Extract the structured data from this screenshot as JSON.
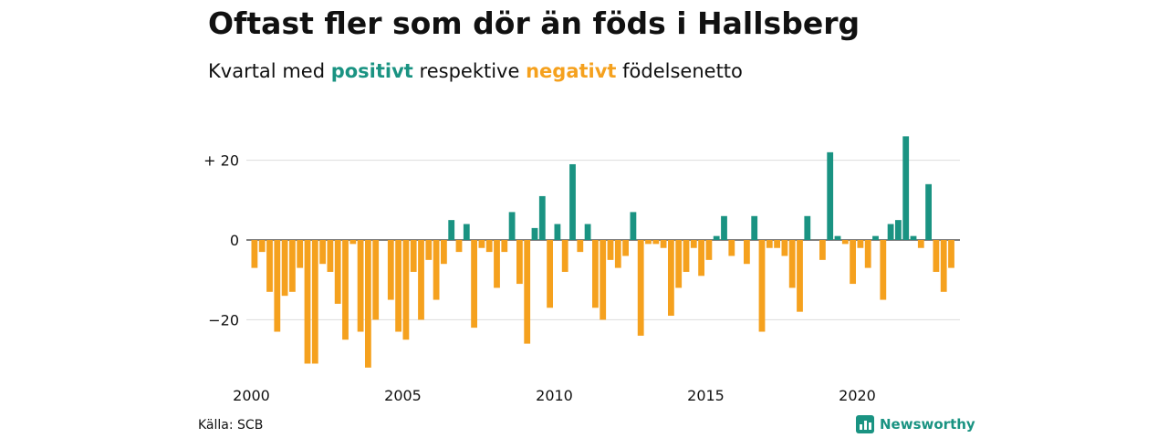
{
  "header": {
    "title": "Oftast fler som dör än föds i Hallsberg",
    "subtitle_prefix": "Kvartal med",
    "subtitle_positive": "positivt",
    "subtitle_middle": "respektive",
    "subtitle_negative": "negativt",
    "subtitle_suffix": "födelsenetto"
  },
  "footer": {
    "source": "Källa: SCB",
    "brand": "Newsworthy",
    "brand_icon": "newsworthy-logo-icon"
  },
  "colors": {
    "positive": "#1a9382",
    "negative": "#f5a11e",
    "grid": "#dddddd",
    "axis": "#333333"
  },
  "chart_data": {
    "type": "bar",
    "title": "Oftast fler som dör än föds i Hallsberg",
    "subtitle": "Kvartal med positivt respektive negativt födelsenetto",
    "x_start": "2000 Q1",
    "x_ticks": [
      "2000",
      "2005",
      "2010",
      "2015",
      "2020"
    ],
    "y_ticks": [
      "+ 20",
      "0",
      "−20"
    ],
    "y_tick_values": [
      20,
      0,
      -20
    ],
    "ylim": [
      -33,
      28
    ],
    "grid": true,
    "values": [
      -7,
      -3,
      -13,
      -23,
      -14,
      -13,
      -7,
      -31,
      -31,
      -6,
      -8,
      -16,
      -25,
      -1,
      -23,
      -32,
      -20,
      0,
      -15,
      -23,
      -25,
      -8,
      -20,
      -5,
      -15,
      -6,
      5,
      -3,
      4,
      -22,
      -2,
      -3,
      -12,
      -3,
      7,
      -11,
      -26,
      3,
      11,
      -17,
      4,
      -8,
      19,
      -3,
      4,
      -17,
      -20,
      -5,
      -7,
      -4,
      7,
      -24,
      -1,
      -1,
      -2,
      -19,
      -12,
      -8,
      -2,
      -9,
      -5,
      1,
      6,
      -4,
      0,
      -6,
      6,
      -23,
      -2,
      -2,
      -4,
      -12,
      -18,
      6,
      0,
      -5,
      22,
      1,
      -1,
      -11,
      -2,
      -7,
      1,
      -15,
      4,
      5,
      26,
      1,
      -2,
      14,
      -8,
      -13,
      -7
    ]
  }
}
